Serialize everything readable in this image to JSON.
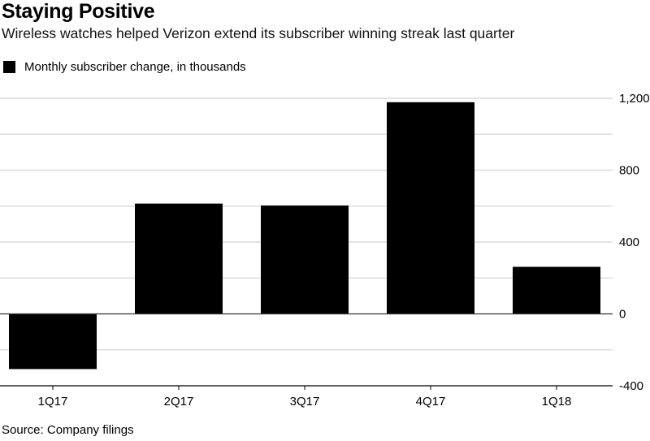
{
  "title": "Staying Positive",
  "subtitle": "Wireless watches helped Verizon extend its subscriber winning streak last quarter",
  "source": "Source: Company filings",
  "chart_data": {
    "type": "bar",
    "title": "Staying Positive",
    "subtitle": "Wireless watches helped Verizon extend its subscriber winning streak last quarter",
    "legend": [
      {
        "name": "Monthly subscriber change, in thousands",
        "color": "#000000"
      }
    ],
    "legend_position": "top-left",
    "categories": [
      "1Q17",
      "2Q17",
      "3Q17",
      "4Q17",
      "1Q18"
    ],
    "series": [
      {
        "name": "Monthly subscriber change, in thousands",
        "values": [
          -307,
          614,
          603,
          1178,
          262
        ],
        "color": "#000000"
      }
    ],
    "xlabel": "",
    "ylabel": "",
    "ylim": [
      -400,
      1200
    ],
    "yticks": [
      -400,
      0,
      400,
      800,
      1200
    ],
    "ytick_labels": [
      "-400",
      "0",
      "400",
      "800",
      "1,200"
    ],
    "minor_gridlines": [
      -200,
      200,
      600,
      1000
    ],
    "yaxis_position": "right",
    "grid": true,
    "source": "Source: Company filings"
  }
}
